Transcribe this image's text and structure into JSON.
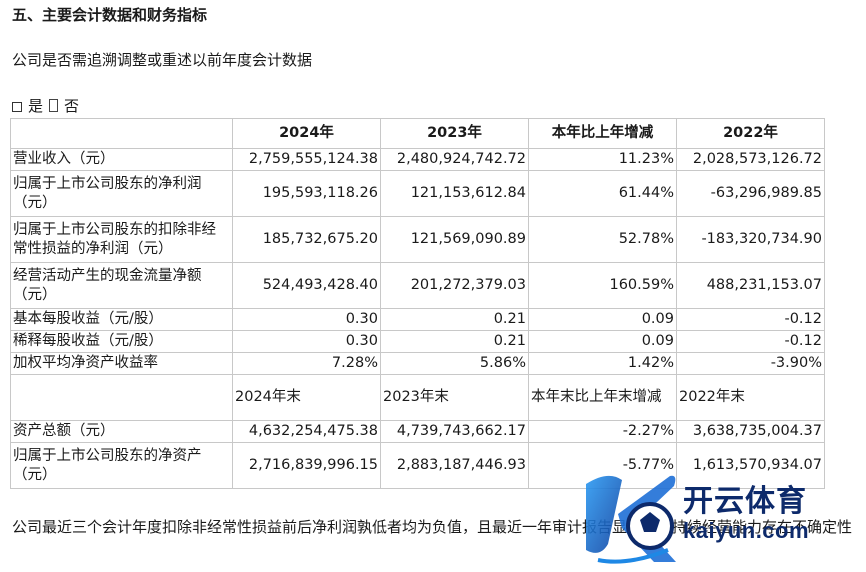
{
  "heading": "五、主要会计数据和财务指标",
  "question": "公司是否需追溯调整或重述以前年度会计数据",
  "choice": {
    "yes": "是",
    "no": "否"
  },
  "table": {
    "headers": [
      "2024年",
      "2023年",
      "本年比上年增减",
      "2022年"
    ],
    "rows": [
      {
        "label": "营业收入（元）",
        "values": [
          "2,759,555,124.38",
          "2,480,924,742.72",
          "11.23%",
          "2,028,573,126.72"
        ]
      },
      {
        "label": "归属于上市公司股东的净利润（元）",
        "values": [
          "195,593,118.26",
          "121,153,612.84",
          "61.44%",
          "-63,296,989.85"
        ]
      },
      {
        "label": "归属于上市公司股东的扣除非经常性损益的净利润（元）",
        "values": [
          "185,732,675.20",
          "121,569,090.89",
          "52.78%",
          "-183,320,734.90"
        ]
      },
      {
        "label": "经营活动产生的现金流量净额（元）",
        "values": [
          "524,493,428.40",
          "201,272,379.03",
          "160.59%",
          "488,231,153.07"
        ]
      },
      {
        "label": "基本每股收益（元/股）",
        "values": [
          "0.30",
          "0.21",
          "0.09",
          "-0.12"
        ]
      },
      {
        "label": "稀释每股收益（元/股）",
        "values": [
          "0.30",
          "0.21",
          "0.09",
          "-0.12"
        ]
      },
      {
        "label": "加权平均净资产收益率",
        "values": [
          "7.28%",
          "5.86%",
          "1.42%",
          "-3.90%"
        ]
      }
    ],
    "subheaders": [
      "2024年末",
      "2023年末",
      "本年末比上年末增减",
      "2022年末"
    ],
    "rows2": [
      {
        "label": "资产总额（元）",
        "values": [
          "4,632,254,475.38",
          "4,739,743,662.17",
          "-2.27%",
          "3,638,735,004.37"
        ]
      },
      {
        "label": "归属于上市公司股东的净资产（元）",
        "values": [
          "2,716,839,996.15",
          "2,883,187,446.93",
          "-5.77%",
          "1,613,570,934.07"
        ]
      }
    ]
  },
  "note": "公司最近三个会计年度扣除非经常性损益前后净利润孰低者均为负值，且最近一年审计报告显示公司持续经营能力存在不确定性",
  "watermark": {
    "title": "开云体育",
    "url": "kaiyun.com",
    "colors": {
      "navy": "#0d2a6b",
      "blue": "#1e88e5"
    }
  }
}
